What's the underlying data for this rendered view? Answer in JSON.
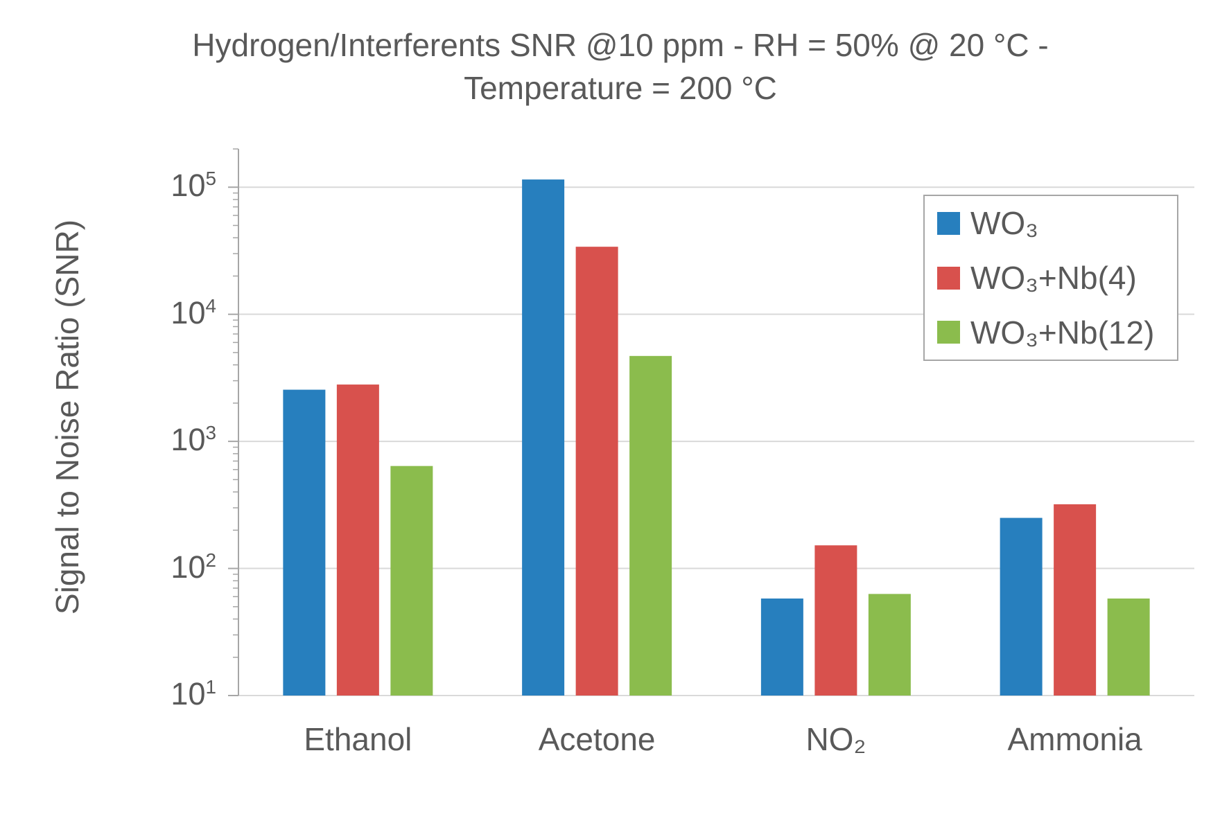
{
  "chart_data": {
    "type": "bar",
    "title": "Hydrogen/Interferents SNR @10 ppm - RH = 50% @ 20 °C - Temperature = 200 °C",
    "title_lines": [
      "Hydrogen/Interferents SNR @10 ppm - RH = 50% @ 20 °C -",
      "Temperature = 200 °C"
    ],
    "xlabel": "",
    "ylabel": "Signal to Noise Ratio (SNR)",
    "y_scale": "log",
    "ylim": [
      10,
      200000
    ],
    "y_tick_exponents": [
      1,
      2,
      3,
      4,
      5
    ],
    "grid": "horizontal-major-only",
    "legend_position": "upper right",
    "categories": [
      "Ethanol",
      "Acetone",
      "NO₂",
      "Ammonia"
    ],
    "series": [
      {
        "name": "WO₃",
        "color": "#277FBE",
        "values": [
          2550,
          115000,
          58,
          250
        ]
      },
      {
        "name": "WO₃+Nb(4)",
        "color": "#D8514D",
        "values": [
          2800,
          34000,
          152,
          320
        ]
      },
      {
        "name": "WO₃+Nb(12)",
        "color": "#8BBC4D",
        "values": [
          640,
          4700,
          63,
          58
        ]
      }
    ],
    "colors": {
      "text": "#595959",
      "grid": "#D9D9D9",
      "axis": "#A6A6A6",
      "background": "#FFFFFF"
    }
  }
}
